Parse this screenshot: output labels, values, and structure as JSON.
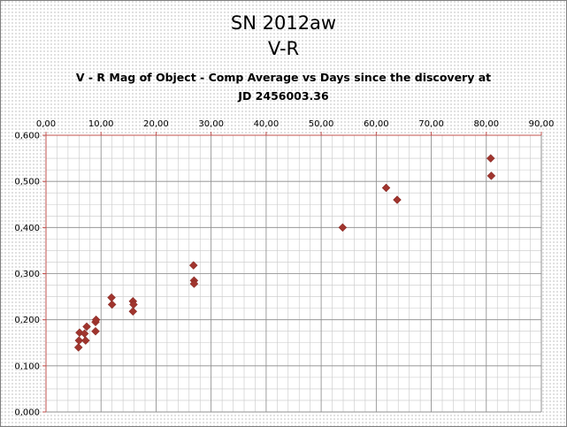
{
  "chart_data": {
    "type": "scatter",
    "title": "SN 2012aw",
    "subtitle": "V-R",
    "description_line1": "V - R  Mag of Object - Comp Average  vs  Days since the discovery at",
    "description_line2": "JD 2456003.36",
    "xlim": [
      0,
      90
    ],
    "ylim": [
      0,
      0.6
    ],
    "x_ticks": [
      "0,00",
      "10,00",
      "20,00",
      "30,00",
      "40,00",
      "50,00",
      "60,00",
      "70,00",
      "80,00",
      "90,00"
    ],
    "y_ticks": [
      "0,000",
      "0,100",
      "0,200",
      "0,300",
      "0,400",
      "0,500",
      "0,600"
    ],
    "x_axis_position": "top",
    "grid": true,
    "marker_color": "#a0352e",
    "points": [
      {
        "x": 5.9,
        "y": 0.14
      },
      {
        "x": 6.0,
        "y": 0.155
      },
      {
        "x": 6.1,
        "y": 0.172
      },
      {
        "x": 7.0,
        "y": 0.17
      },
      {
        "x": 7.2,
        "y": 0.155
      },
      {
        "x": 7.4,
        "y": 0.185
      },
      {
        "x": 9.0,
        "y": 0.195
      },
      {
        "x": 9.1,
        "y": 0.2
      },
      {
        "x": 9.0,
        "y": 0.175
      },
      {
        "x": 11.9,
        "y": 0.248
      },
      {
        "x": 12.0,
        "y": 0.233
      },
      {
        "x": 15.8,
        "y": 0.24
      },
      {
        "x": 15.9,
        "y": 0.233
      },
      {
        "x": 15.8,
        "y": 0.218
      },
      {
        "x": 26.8,
        "y": 0.318
      },
      {
        "x": 26.9,
        "y": 0.285
      },
      {
        "x": 26.9,
        "y": 0.278
      },
      {
        "x": 53.9,
        "y": 0.4
      },
      {
        "x": 61.8,
        "y": 0.486
      },
      {
        "x": 63.8,
        "y": 0.46
      },
      {
        "x": 80.8,
        "y": 0.55
      },
      {
        "x": 80.9,
        "y": 0.512
      }
    ]
  }
}
